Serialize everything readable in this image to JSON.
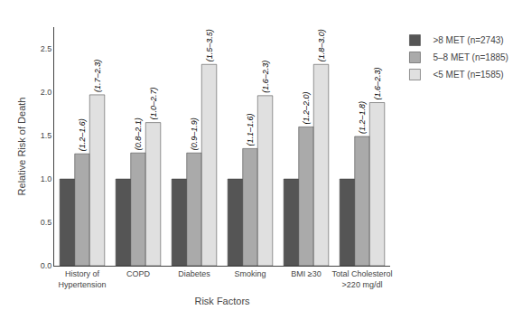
{
  "chart_data": {
    "type": "bar",
    "categories": [
      "History of\nHypertension",
      "COPD",
      "Diabetes",
      "Smoking",
      "BMI ≥30",
      "Total Cholesterol\n>220 mg/dl"
    ],
    "series": [
      {
        "name": ">8 MET (n=2743)",
        "color": "#555555",
        "values": [
          1.0,
          1.0,
          1.0,
          1.0,
          1.0,
          1.0
        ]
      },
      {
        "name": "5–8 MET (n=1885)",
        "color": "#aaaaaa",
        "values": [
          1.29,
          1.3,
          1.3,
          1.35,
          1.6,
          1.49
        ],
        "annotations": [
          "(1.2–1.6)",
          "(0.8–2.1)",
          "(0.9–1.9)",
          "(1.1–1.6)",
          "(1.2–2.0)",
          "(1.2–1.8)"
        ]
      },
      {
        "name": "<5 MET (n=1585)",
        "color": "#e0e0e0",
        "values": [
          1.97,
          1.65,
          2.32,
          1.96,
          2.32,
          1.88
        ],
        "annotations": [
          "(1.7–2.3)",
          "(1.0–2.7)",
          "(1.5–3.5)",
          "(1.6–2.3)",
          "(1.8–3.0)",
          "(1.6–2.3)"
        ]
      }
    ],
    "xlabel": "Risk Factors",
    "ylabel": "Relative Risk of Death",
    "ylim": [
      0.0,
      2.75
    ],
    "yticks": [
      {
        "value": 0.0,
        "label": "0.0"
      },
      0.5,
      {
        "value": 1.0,
        "label": "1.0"
      },
      1.5,
      {
        "value": 2.0,
        "label": "2.0"
      },
      2.5
    ],
    "grid": false,
    "legend": "right"
  }
}
